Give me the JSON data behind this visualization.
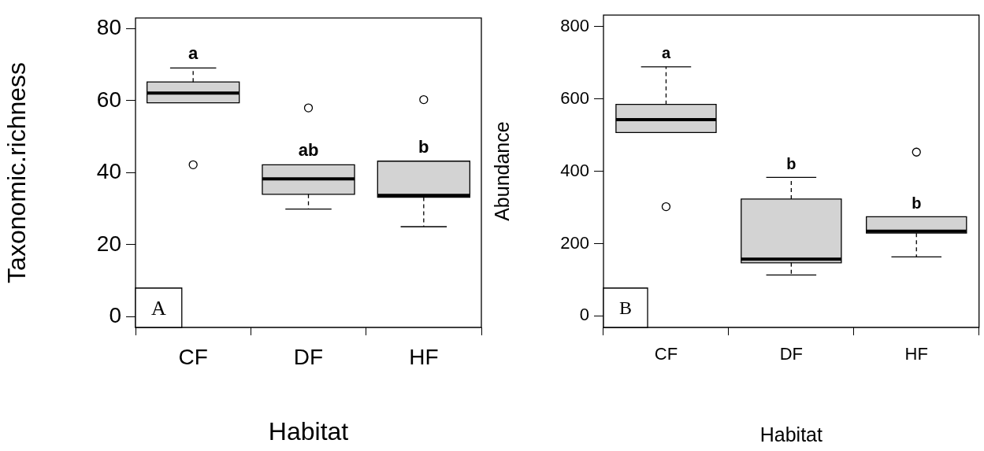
{
  "chart_data": [
    {
      "type": "box",
      "xlabel": "Habitat",
      "ylabel": "Taxonomic.richness",
      "categories": [
        "CF",
        "DF",
        "HF"
      ],
      "color": "#d3d3d3",
      "ylim": [
        -3,
        83
      ],
      "yticks": [
        0,
        20,
        40,
        60,
        80
      ],
      "boxes": [
        {
          "low": 59.4,
          "q1": 59.4,
          "median": 62.1,
          "q3": 65.2,
          "high": 69.1,
          "outliers": [
            42.2
          ]
        },
        {
          "low": 29.9,
          "q1": 34,
          "median": 38.3,
          "q3": 42.2,
          "high": 42.2,
          "outliers": [
            58
          ]
        },
        {
          "low": 25,
          "q1": 33.2,
          "median": 33.7,
          "q3": 43.2,
          "high": 43.2,
          "outliers": [
            60.3
          ]
        }
      ],
      "annotations": [
        "A",
        "a",
        "ab",
        "b"
      ]
    },
    {
      "type": "box",
      "xlabel": "Habitat",
      "ylabel": "Abundance",
      "categories": [
        "CF",
        "DF",
        "HF"
      ],
      "color": "#d3d3d3",
      "ylim": [
        -32,
        832
      ],
      "yticks": [
        0,
        200,
        400,
        600,
        800
      ],
      "boxes": [
        {
          "low": 507,
          "q1": 507,
          "median": 543,
          "q3": 585,
          "high": 689,
          "outliers": [
            302
          ]
        },
        {
          "low": 113,
          "q1": 147,
          "median": 157,
          "q3": 323,
          "high": 383
        },
        {
          "low": 163,
          "q1": 229,
          "median": 234,
          "q3": 274,
          "high": 274,
          "outliers": [
            453
          ]
        }
      ],
      "annotations": [
        "B",
        "a",
        "b",
        "b"
      ]
    }
  ]
}
